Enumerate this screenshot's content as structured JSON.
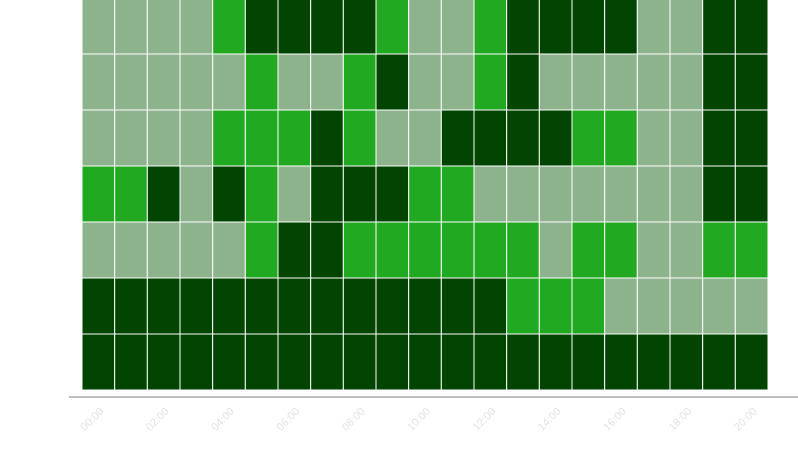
{
  "chart_data": {
    "type": "heatmap",
    "title": "",
    "xlabel": "",
    "ylabel": "",
    "x_tick_labels": [
      "00:00",
      "02:00",
      "04:00",
      "06:00",
      "08:00",
      "10:00",
      "12:00",
      "14:00",
      "16:00",
      "18:00",
      "20:00"
    ],
    "columns": 21,
    "levels": [
      "light",
      "bright",
      "dark"
    ],
    "colors": {
      "light": "#8db38c",
      "bright": "#21a921",
      "dark": "#004400",
      "cell_border": "#ffffff",
      "axis": "#aaaaaa"
    },
    "grid": [
      [
        0,
        0,
        0,
        0,
        1,
        2,
        2,
        2,
        2,
        1,
        0,
        0,
        1,
        2,
        2,
        2,
        2,
        0,
        0,
        2,
        2
      ],
      [
        0,
        0,
        0,
        0,
        0,
        1,
        0,
        0,
        1,
        2,
        0,
        0,
        1,
        2,
        0,
        0,
        0,
        0,
        0,
        2,
        2
      ],
      [
        0,
        0,
        0,
        0,
        1,
        1,
        1,
        2,
        1,
        0,
        0,
        2,
        2,
        2,
        2,
        1,
        1,
        0,
        0,
        2,
        2
      ],
      [
        1,
        1,
        2,
        0,
        2,
        1,
        0,
        2,
        2,
        2,
        1,
        1,
        0,
        0,
        0,
        0,
        0,
        0,
        0,
        2,
        2
      ],
      [
        0,
        0,
        0,
        0,
        0,
        1,
        2,
        2,
        1,
        1,
        1,
        1,
        1,
        1,
        0,
        1,
        1,
        0,
        0,
        1,
        1
      ],
      [
        2,
        2,
        2,
        2,
        2,
        2,
        2,
        2,
        2,
        2,
        2,
        2,
        2,
        1,
        1,
        1,
        0,
        0,
        0,
        0,
        0
      ],
      [
        2,
        2,
        2,
        2,
        2,
        2,
        2,
        2,
        2,
        2,
        2,
        2,
        2,
        2,
        2,
        2,
        2,
        2,
        2,
        2,
        2
      ]
    ]
  }
}
